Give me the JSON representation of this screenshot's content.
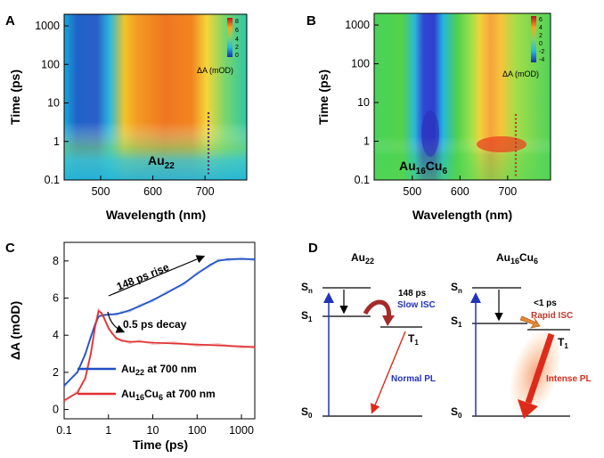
{
  "panels": {
    "A": {
      "letter": "A",
      "sample_label": {
        "main": "Au",
        "sub": "22"
      },
      "colorbar": {
        "title": "ΔA (mOD)",
        "ticks": [
          "8",
          "6",
          "4",
          "2",
          "0"
        ]
      },
      "marker_wavelength": "700"
    },
    "B": {
      "letter": "B",
      "sample_label": {
        "main": "Au",
        "sub1": "16",
        "mid": "Cu",
        "sub2": "6"
      },
      "colorbar": {
        "title": "ΔA (mOD)",
        "ticks": [
          "6",
          "4",
          "2",
          "0",
          "-2",
          "-4"
        ]
      },
      "marker_wavelength": "700"
    },
    "C": {
      "letter": "C",
      "annotations": {
        "rise": "148 ps rise",
        "decay": "0.5 ps decay"
      },
      "legend": [
        {
          "main": "Au",
          "sub": "22",
          "rest": " at 700 nm",
          "color": "#1f4fc4"
        },
        {
          "main": "Au",
          "sub": "16",
          "mid": "Cu",
          "sub2": "6",
          "rest": " at 700 nm",
          "color": "#e03030"
        }
      ]
    },
    "D": {
      "letter": "D",
      "left": {
        "title_main": "Au",
        "title_sub": "22",
        "sn": "S",
        "sn_sub": "n",
        "s1": "S",
        "s1_sub": "1",
        "s0": "S",
        "s0_sub": "0",
        "t1": "T",
        "t1_sub": "1",
        "isc_time": "148 ps",
        "isc_label": "Slow ISC",
        "pl_label": "Normal PL"
      },
      "right": {
        "title_main": "Au",
        "title_sub1": "16",
        "title_mid": "Cu",
        "title_sub2": "6",
        "sn": "S",
        "sn_sub": "n",
        "s1": "S",
        "s1_sub": "1",
        "s0": "S",
        "s0_sub": "0",
        "t1": "T",
        "t1_sub": "1",
        "isc_time": "<1 ps",
        "isc_label": "Rapid ISC",
        "pl_label": "Intense PL"
      }
    }
  },
  "colors": {
    "blue_curve": "#1f4fc4",
    "red_curve": "#e03030",
    "isc_arrow": "#a52a2a",
    "rapid_isc": "#e08a3a",
    "pl_red": "#dd2b1b"
  },
  "chart_data": [
    {
      "type": "heatmap",
      "panel": "A",
      "xlabel": "Wavelength (nm)",
      "ylabel": "Time (ps)",
      "xlim": [
        430,
        780
      ],
      "xticks": [
        500,
        600,
        700
      ],
      "ylim": [
        0.1,
        2000
      ],
      "yscale": "log",
      "yticks": [
        0.1,
        1,
        10,
        100,
        1000
      ],
      "ytick_labels": [
        "0.1",
        "1",
        "10",
        "100",
        "1000"
      ],
      "colorbar_range": [
        0,
        9
      ],
      "features": [
        {
          "band": "bleach",
          "wavelength_range": [
            460,
            510
          ],
          "value": 0
        },
        {
          "band": "absorption",
          "wavelength_range": [
            570,
            700
          ],
          "value": 8
        }
      ]
    },
    {
      "type": "heatmap",
      "panel": "B",
      "xlabel": "Wavelength (nm)",
      "ylabel": "Time (ps)",
      "xlim": [
        420,
        790
      ],
      "xticks": [
        500,
        600,
        700
      ],
      "ylim": [
        0.1,
        2000
      ],
      "yscale": "log",
      "yticks": [
        0.1,
        1,
        10,
        100,
        1000
      ],
      "ytick_labels": [
        "0.1",
        "1",
        "10",
        "100",
        "1000"
      ],
      "colorbar_range": [
        -4,
        7
      ],
      "features": [
        {
          "band": "bleach",
          "wavelength_range": [
            505,
            560
          ],
          "value": -4
        },
        {
          "band": "absorption",
          "wavelength_range": [
            640,
            680
          ],
          "value": 6
        }
      ]
    },
    {
      "type": "line",
      "panel": "C",
      "xlabel": "Time (ps)",
      "ylabel": "ΔA (mOD)",
      "xscale": "log",
      "xlim": [
        0.1,
        2000
      ],
      "xticks": [
        0.1,
        1,
        10,
        100,
        1000
      ],
      "xtick_labels": [
        "0.1",
        "1",
        "10",
        "100",
        "1000"
      ],
      "ylim": [
        -0.5,
        9
      ],
      "yticks": [
        0,
        2,
        4,
        6,
        8
      ],
      "series": [
        {
          "name": "Au22 at 700 nm",
          "color": "#1f4fc4",
          "x": [
            0.1,
            0.2,
            0.3,
            0.4,
            0.5,
            0.6,
            0.8,
            1,
            1.5,
            2,
            3,
            5,
            10,
            20,
            50,
            100,
            200,
            300,
            500,
            1000,
            2000
          ],
          "y": [
            1.3,
            2.0,
            3.0,
            3.9,
            4.6,
            5.0,
            5.1,
            5.1,
            5.15,
            5.2,
            5.35,
            5.55,
            5.9,
            6.25,
            6.8,
            7.3,
            7.8,
            8.0,
            8.1,
            8.1,
            8.1
          ]
        },
        {
          "name": "Au16Cu6 at 700 nm",
          "color": "#e03030",
          "x": [
            0.1,
            0.2,
            0.3,
            0.4,
            0.5,
            0.6,
            0.7,
            0.8,
            1,
            1.2,
            1.5,
            2,
            3,
            5,
            10,
            30,
            100,
            300,
            1000,
            2000
          ],
          "y": [
            0.5,
            0.9,
            1.7,
            3.0,
            4.5,
            5.3,
            5.2,
            4.9,
            4.4,
            4.1,
            3.85,
            3.7,
            3.65,
            3.65,
            3.6,
            3.55,
            3.5,
            3.45,
            3.4,
            3.35
          ]
        }
      ]
    }
  ]
}
